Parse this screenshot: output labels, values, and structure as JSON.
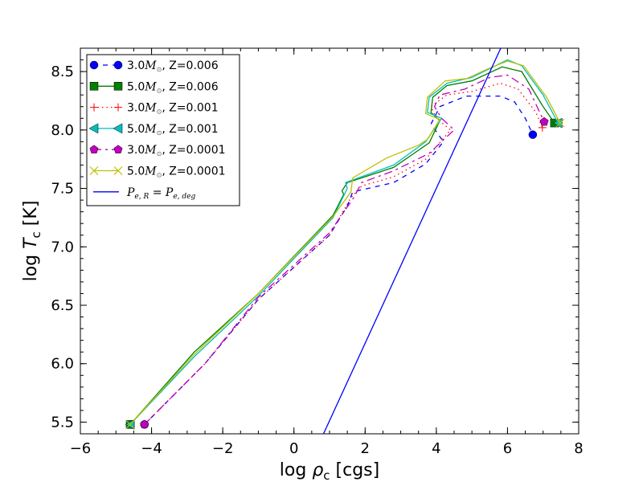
{
  "chart_data": {
    "type": "line",
    "title": "",
    "xlabel": "log ρc [cgs]",
    "ylabel": "log Tc [K]",
    "xlabel_parts": {
      "pre": "log ",
      "sym": "ρ",
      "sub": "c",
      "post": " [cgs]"
    },
    "ylabel_parts": {
      "pre": "log ",
      "sym": "T",
      "sub": "c",
      "post": " [K]"
    },
    "xlim": [
      -6,
      8
    ],
    "ylim": [
      5.4,
      8.7
    ],
    "xticks": [
      -6,
      -4,
      -2,
      0,
      2,
      4,
      6,
      8
    ],
    "xtick_labels": [
      "−6",
      "−4",
      "−2",
      "0",
      "2",
      "4",
      "6",
      "8"
    ],
    "yticks": [
      5.5,
      6.0,
      6.5,
      7.0,
      7.5,
      8.0,
      8.5
    ],
    "ytick_labels": [
      "5.5",
      "6.0",
      "6.5",
      "7.0",
      "7.5",
      "8.0",
      "8.5"
    ],
    "grid": false,
    "legend_position": "top-left",
    "series": [
      {
        "name": "3.0M⊙, Z=0.006",
        "color": "#0000ff",
        "dash": "6,6",
        "marker": "circle",
        "points": [
          [
            -4.2,
            5.48
          ],
          [
            -2.5,
            6.0
          ],
          [
            -1,
            6.55
          ],
          [
            1.0,
            7.1
          ],
          [
            1.5,
            7.35
          ],
          [
            1.65,
            7.47
          ],
          [
            2.8,
            7.55
          ],
          [
            3.7,
            7.71
          ],
          [
            4.2,
            7.9
          ],
          [
            3.85,
            8.05
          ],
          [
            4.1,
            8.2
          ],
          [
            4.84,
            8.29
          ],
          [
            5.8,
            8.29
          ],
          [
            6.2,
            8.24
          ],
          [
            6.5,
            8.1
          ],
          [
            6.71,
            7.96
          ]
        ]
      },
      {
        "name": "5.0M⊙, Z=0.006",
        "color": "#007f00",
        "dash": "",
        "marker": "square",
        "points": [
          [
            -4.6,
            5.48
          ],
          [
            -2.8,
            6.1
          ],
          [
            -1,
            6.6
          ],
          [
            1.1,
            7.27
          ],
          [
            1.4,
            7.45
          ],
          [
            1.35,
            7.48
          ],
          [
            1.5,
            7.55
          ],
          [
            2.8,
            7.68
          ],
          [
            3.8,
            7.89
          ],
          [
            4.1,
            8.08
          ],
          [
            3.85,
            8.15
          ],
          [
            3.9,
            8.28
          ],
          [
            4.3,
            8.38
          ],
          [
            5.0,
            8.42
          ],
          [
            5.85,
            8.54
          ],
          [
            6.4,
            8.5
          ],
          [
            7.0,
            8.2
          ],
          [
            7.32,
            8.06
          ]
        ]
      },
      {
        "name": "3.0M⊙, Z=0.001",
        "color": "#ff0000",
        "dash": "1.5,4",
        "marker": "plus",
        "points": [
          [
            -4.2,
            5.48
          ],
          [
            -2.5,
            6.0
          ],
          [
            -1,
            6.55
          ],
          [
            1.0,
            7.1
          ],
          [
            1.6,
            7.42
          ],
          [
            1.9,
            7.52
          ],
          [
            2.8,
            7.6
          ],
          [
            3.7,
            7.75
          ],
          [
            4.4,
            8.0
          ],
          [
            4.0,
            8.1
          ],
          [
            3.85,
            8.2
          ],
          [
            4.3,
            8.3
          ],
          [
            5.0,
            8.33
          ],
          [
            5.8,
            8.4
          ],
          [
            6.3,
            8.35
          ],
          [
            6.8,
            8.15
          ],
          [
            6.98,
            8.02
          ]
        ]
      },
      {
        "name": "5.0M⊙, Z=0.001",
        "color": "#00bfbf",
        "dash": "",
        "marker": "triangle-left",
        "points": [
          [
            -4.6,
            5.48
          ],
          [
            -2.8,
            6.06
          ],
          [
            -1,
            6.58
          ],
          [
            1.1,
            7.25
          ],
          [
            1.5,
            7.5
          ],
          [
            1.45,
            7.55
          ],
          [
            2.8,
            7.7
          ],
          [
            3.7,
            7.9
          ],
          [
            4.15,
            8.1
          ],
          [
            3.75,
            8.15
          ],
          [
            3.8,
            8.28
          ],
          [
            4.3,
            8.4
          ],
          [
            5.0,
            8.45
          ],
          [
            6.0,
            8.6
          ],
          [
            6.4,
            8.55
          ],
          [
            7.0,
            8.3
          ],
          [
            7.42,
            8.06
          ]
        ]
      },
      {
        "name": "3.0M⊙, Z=0.0001",
        "color": "#bf00bf",
        "dash": "10,5,3,5",
        "marker": "pentagon",
        "points": [
          [
            -4.2,
            5.48
          ],
          [
            -2.5,
            6.0
          ],
          [
            -1,
            6.57
          ],
          [
            1.0,
            7.12
          ],
          [
            1.7,
            7.43
          ],
          [
            1.9,
            7.55
          ],
          [
            2.8,
            7.65
          ],
          [
            3.8,
            7.8
          ],
          [
            4.5,
            8.0
          ],
          [
            4.15,
            8.1
          ],
          [
            3.95,
            8.2
          ],
          [
            4.1,
            8.3
          ],
          [
            4.8,
            8.35
          ],
          [
            5.5,
            8.45
          ],
          [
            6.0,
            8.47
          ],
          [
            6.6,
            8.35
          ],
          [
            7.03,
            8.07
          ]
        ]
      },
      {
        "name": "5.0M⊙, Z=0.0001",
        "color": "#bfbf00",
        "dash": "",
        "marker": "x",
        "points": [
          [
            -4.6,
            5.48
          ],
          [
            -2.8,
            6.08
          ],
          [
            -1,
            6.6
          ],
          [
            1.1,
            7.26
          ],
          [
            1.6,
            7.47
          ],
          [
            1.65,
            7.59
          ],
          [
            2.6,
            7.76
          ],
          [
            3.5,
            7.87
          ],
          [
            3.75,
            7.92
          ],
          [
            4.1,
            8.09
          ],
          [
            3.7,
            8.14
          ],
          [
            3.75,
            8.28
          ],
          [
            4.25,
            8.42
          ],
          [
            4.85,
            8.44
          ],
          [
            5.5,
            8.53
          ],
          [
            6.0,
            8.59
          ],
          [
            6.45,
            8.55
          ],
          [
            7.1,
            8.28
          ],
          [
            7.48,
            8.06
          ]
        ]
      },
      {
        "name": "Pe,R = Pe,deg",
        "color": "#0000ff",
        "dash": "",
        "marker": "none",
        "points": [
          [
            0.83,
            5.4
          ],
          [
            5.81,
            8.7
          ]
        ]
      }
    ],
    "legend": [
      {
        "mass": "3.0",
        "rest": ", Z=0.006"
      },
      {
        "mass": "5.0",
        "rest": ", Z=0.006"
      },
      {
        "mass": "3.0",
        "rest": ", Z=0.001"
      },
      {
        "mass": "5.0",
        "rest": ", Z=0.001"
      },
      {
        "mass": "3.0",
        "rest": ", Z=0.0001"
      },
      {
        "mass": "5.0",
        "rest": ", Z=0.0001"
      },
      {
        "math": "Pe,R = Pe,deg",
        "lhs": "P",
        "lhs_sub": "e, R",
        "eq": " = ",
        "rhs": "P",
        "rhs_sub": "e, deg"
      }
    ],
    "mass_symbol": "M",
    "sun_symbol": "⊙"
  }
}
